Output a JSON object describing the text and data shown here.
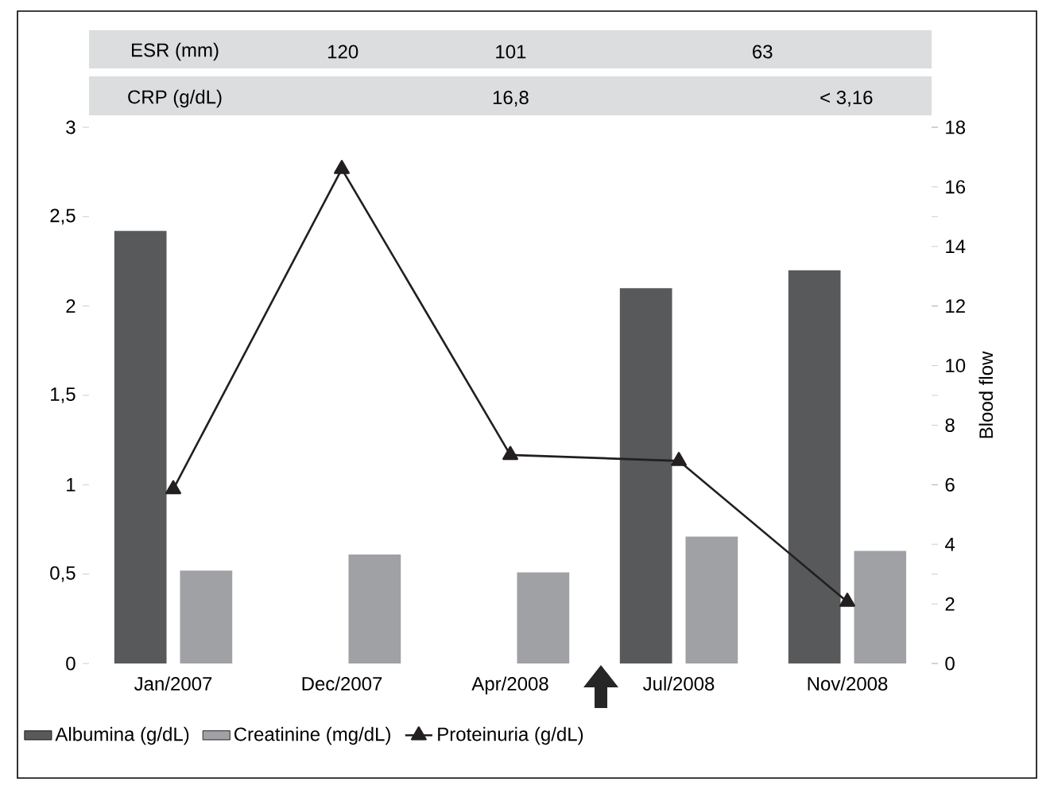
{
  "chart_data": {
    "type": "bar",
    "categories": [
      "Jan/2007",
      "Dec/2007",
      "Apr/2008",
      "Jul/2008",
      "Nov/2008"
    ],
    "series": [
      {
        "name": "Albumina (g/dL)",
        "color": "#58595b",
        "values": [
          2.42,
          null,
          null,
          2.1,
          2.2
        ]
      },
      {
        "name": "Creatinine (mg/dL)",
        "color": "#a0a1a5",
        "values": [
          0.52,
          0.61,
          0.51,
          0.71,
          0.63
        ]
      },
      {
        "name": "Proteinuria (g/dL)",
        "type": "line",
        "axis": "y2",
        "color": "#231f20",
        "marker": "triangle",
        "line_style": "solid",
        "values": [
          5.85,
          16.6,
          7.0,
          6.8,
          2.07
        ]
      }
    ],
    "ylim": [
      0,
      3
    ],
    "yticks": [
      0,
      {
        "value": 0.5,
        "label": "0,5"
      },
      1,
      {
        "value": 1.5,
        "label": "1,5"
      },
      2,
      {
        "value": 2.5,
        "label": "2,5"
      },
      3
    ],
    "y2lim": [
      0,
      18
    ],
    "y2ticks": [
      0,
      2,
      4,
      6,
      8,
      10,
      12,
      14,
      16,
      18
    ],
    "y2label": "Blood flow",
    "legend": "bottom",
    "annotations": [
      "ESR (mm)",
      "120",
      "101",
      "63",
      "CRP (g/dL)",
      "16,8",
      "< 3,16"
    ]
  }
}
